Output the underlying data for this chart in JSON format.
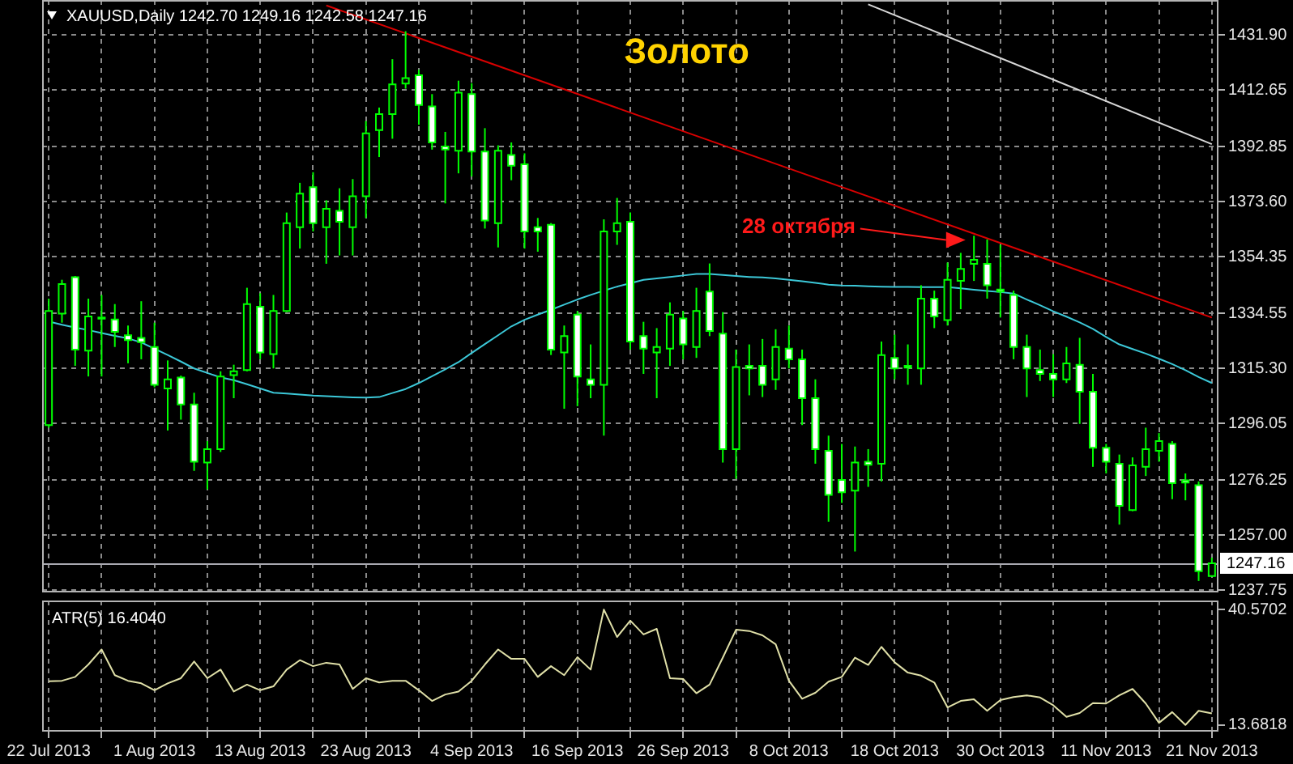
{
  "chart_data": [
    {
      "type": "candlestick",
      "title": "Золото",
      "subtitle": "XAUUSD,Daily 1242.70 1249.16 1242.58 1247.16",
      "categories": [
        null,
        null,
        null,
        null,
        null,
        null,
        null,
        null,
        null,
        null,
        null,
        null,
        null,
        null,
        null,
        null,
        null,
        null,
        null,
        null,
        null,
        null,
        null,
        null,
        null,
        null,
        null,
        null,
        null,
        null,
        null,
        null,
        null,
        null,
        null,
        null,
        null,
        null,
        null,
        null,
        null,
        null,
        null,
        null,
        null,
        null,
        null,
        null,
        null,
        null,
        null,
        null,
        null,
        null,
        null,
        null,
        null,
        null,
        null,
        null,
        null,
        null,
        null,
        null,
        null,
        null,
        null,
        null,
        null,
        null,
        null,
        null,
        null,
        null,
        null,
        null,
        null,
        null,
        null,
        null,
        null,
        null,
        null,
        null,
        null,
        null,
        null,
        null,
        null
      ],
      "ohlc": [
        [
          1295.5,
          1339.7,
          1294.6,
          1335.4
        ],
        [
          1334.5,
          1346.3,
          1331.3,
          1344.8
        ],
        [
          1347.2,
          1347.6,
          1316.2,
          1321.9
        ],
        [
          1321.5,
          1339.7,
          1312.5,
          1333.5
        ],
        [
          1332.7,
          1341.0,
          1312.5,
          1333.1
        ],
        [
          1332.4,
          1337.8,
          1322.8,
          1328.1
        ],
        [
          1326.9,
          1330.3,
          1317.1,
          1325.2
        ],
        [
          1326.0,
          1338.8,
          1318.5,
          1324.5
        ],
        [
          1322.8,
          1331.3,
          1308.7,
          1309.6
        ],
        [
          1308.3,
          1318.1,
          1293.6,
          1311.5
        ],
        [
          1312.1,
          1312.8,
          1297.4,
          1302.7
        ],
        [
          1302.7,
          1306.8,
          1279.5,
          1282.7
        ],
        [
          1282.4,
          1289.9,
          1273.0,
          1287.1
        ],
        [
          1287.1,
          1314.3,
          1286.1,
          1312.5
        ],
        [
          1313.0,
          1316.6,
          1304.9,
          1314.3
        ],
        [
          1314.7,
          1343.5,
          1314.3,
          1337.8
        ],
        [
          1336.9,
          1341.6,
          1318.5,
          1320.9
        ],
        [
          1320.3,
          1341.0,
          1315.3,
          1335.4
        ],
        [
          1335.4,
          1369.8,
          1335.0,
          1366.1
        ],
        [
          1364.7,
          1380.2,
          1357.2,
          1376.4
        ],
        [
          1378.7,
          1383.9,
          1363.2,
          1366.1
        ],
        [
          1364.7,
          1374.1,
          1351.9,
          1371.1
        ],
        [
          1370.4,
          1378.3,
          1354.8,
          1366.6
        ],
        [
          1364.7,
          1381.5,
          1354.8,
          1375.5
        ],
        [
          1375.5,
          1401.8,
          1367.9,
          1397.5
        ],
        [
          1398.6,
          1406.5,
          1389.2,
          1404.2
        ],
        [
          1404.2,
          1423.4,
          1395.6,
          1414.6
        ],
        [
          1414.9,
          1433.2,
          1413.1,
          1416.8
        ],
        [
          1417.8,
          1419.7,
          1400.5,
          1407.4
        ],
        [
          1406.9,
          1411.2,
          1391.8,
          1394.3
        ],
        [
          1392.9,
          1398.0,
          1373.0,
          1391.8
        ],
        [
          1391.4,
          1415.9,
          1383.5,
          1411.7
        ],
        [
          1411.2,
          1415.0,
          1382.4,
          1391.1
        ],
        [
          1391.1,
          1399.3,
          1364.2,
          1367.0
        ],
        [
          1366.1,
          1393.3,
          1357.6,
          1391.4
        ],
        [
          1389.9,
          1394.3,
          1381.1,
          1386.2
        ],
        [
          1386.7,
          1390.5,
          1357.2,
          1363.2
        ],
        [
          1364.7,
          1367.9,
          1356.1,
          1363.2
        ],
        [
          1365.5,
          1366.1,
          1320.0,
          1321.9
        ],
        [
          1320.9,
          1330.3,
          1301.2,
          1326.6
        ],
        [
          1334.1,
          1335.4,
          1302.1,
          1312.5
        ],
        [
          1311.5,
          1323.7,
          1304.9,
          1309.6
        ],
        [
          1309.6,
          1367.4,
          1291.8,
          1363.2
        ],
        [
          1363.2,
          1374.9,
          1358.5,
          1366.1
        ],
        [
          1366.6,
          1369.8,
          1321.9,
          1324.7
        ],
        [
          1326.6,
          1331.6,
          1313.4,
          1322.2
        ],
        [
          1320.9,
          1329.4,
          1304.9,
          1322.8
        ],
        [
          1322.2,
          1338.4,
          1316.2,
          1334.1
        ],
        [
          1332.8,
          1335.4,
          1318.5,
          1323.7
        ],
        [
          1322.8,
          1343.5,
          1319.0,
          1335.4
        ],
        [
          1342.2,
          1352.0,
          1326.6,
          1328.4
        ],
        [
          1327.5,
          1335.0,
          1282.4,
          1287.1
        ],
        [
          1287.1,
          1321.9,
          1276.7,
          1315.8
        ],
        [
          1316.2,
          1323.7,
          1305.9,
          1315.3
        ],
        [
          1316.2,
          1325.6,
          1305.3,
          1309.6
        ],
        [
          1311.5,
          1329.0,
          1307.8,
          1322.8
        ],
        [
          1322.2,
          1330.3,
          1315.3,
          1318.5
        ],
        [
          1318.5,
          1321.9,
          1295.5,
          1304.9
        ],
        [
          1304.9,
          1311.5,
          1282.0,
          1287.1
        ],
        [
          1286.5,
          1291.8,
          1261.7,
          1271.1
        ],
        [
          1276.3,
          1288.9,
          1268.3,
          1272.0
        ],
        [
          1272.6,
          1288.0,
          1251.3,
          1282.4
        ],
        [
          1282.7,
          1287.1,
          1273.9,
          1281.6
        ],
        [
          1282.0,
          1324.7,
          1275.8,
          1320.0
        ],
        [
          1319.0,
          1327.1,
          1311.5,
          1315.3
        ],
        [
          1316.2,
          1323.7,
          1309.6,
          1315.6
        ],
        [
          1315.3,
          1344.4,
          1309.6,
          1339.7
        ],
        [
          1339.7,
          1342.5,
          1329.4,
          1333.5
        ],
        [
          1332.2,
          1352.3,
          1330.3,
          1346.3
        ],
        [
          1345.9,
          1355.7,
          1336.0,
          1350.1
        ],
        [
          1351.9,
          1361.7,
          1345.9,
          1353.3
        ],
        [
          1351.9,
          1360.4,
          1339.7,
          1344.4
        ],
        [
          1342.9,
          1358.5,
          1333.1,
          1342.2
        ],
        [
          1341.0,
          1342.5,
          1318.5,
          1322.8
        ],
        [
          1322.8,
          1327.1,
          1305.3,
          1315.3
        ],
        [
          1314.7,
          1321.9,
          1310.9,
          1313.4
        ],
        [
          1313.4,
          1320.3,
          1305.3,
          1311.5
        ],
        [
          1311.5,
          1322.8,
          1310.2,
          1317.1
        ],
        [
          1316.6,
          1326.0,
          1295.9,
          1307.2
        ],
        [
          1307.2,
          1313.4,
          1280.9,
          1287.6
        ],
        [
          1287.6,
          1288.9,
          1278.6,
          1282.7
        ],
        [
          1282.0,
          1285.2,
          1260.7,
          1267.3
        ],
        [
          1265.8,
          1284.2,
          1265.4,
          1281.4
        ],
        [
          1280.9,
          1294.6,
          1277.7,
          1287.1
        ],
        [
          1286.5,
          1292.7,
          1282.7,
          1289.9
        ],
        [
          1288.9,
          1289.9,
          1269.6,
          1275.2
        ],
        [
          1276.2,
          1278.6,
          1269.2,
          1275.4
        ],
        [
          1274.5,
          1275.8,
          1241.0,
          1244.4
        ],
        [
          1242.7,
          1249.16,
          1242.58,
          1247.16
        ]
      ],
      "color": "#00ff00",
      "series": [
        {
          "type": "line",
          "color": "#3cc8d8",
          "values": [
            1331.7,
            1330.6,
            1329.6,
            1328.7,
            1327.7,
            1326.7,
            1325.8,
            1324.4,
            1322.2,
            1320.0,
            1317.7,
            1315.3,
            1313.7,
            1312.2,
            1311.2,
            1309.8,
            1308.3,
            1306.8,
            1306.5,
            1306.2,
            1305.8,
            1305.6,
            1305.4,
            1305.2,
            1305.1,
            1305.3,
            1306.7,
            1308.1,
            1310.2,
            1312.6,
            1315.0,
            1317.5,
            1320.7,
            1323.8,
            1326.9,
            1330.0,
            1332.3,
            1334.1,
            1335.8,
            1337.6,
            1339.4,
            1341.0,
            1342.5,
            1343.9,
            1345.1,
            1346.3,
            1346.8,
            1347.3,
            1347.8,
            1348.3,
            1348.3,
            1348.0,
            1347.6,
            1347.3,
            1347.1,
            1346.8,
            1346.3,
            1345.8,
            1345.2,
            1344.6,
            1344.3,
            1344.2,
            1344.0,
            1343.9,
            1343.8,
            1343.8,
            1343.7,
            1343.7,
            1343.7,
            1343.3,
            1342.8,
            1342.4,
            1342.0,
            1341.5,
            1339.4,
            1337.4,
            1335.3,
            1333.4,
            1331.4,
            1329.1,
            1326.3,
            1323.7,
            1322.1,
            1320.5,
            1318.7,
            1316.8,
            1314.7,
            1312.3,
            1310.2
          ]
        },
        {
          "type": "line",
          "color": "#d80000",
          "values": [
            null,
            null,
            null,
            null,
            null,
            null,
            null,
            null,
            null,
            null,
            null,
            null,
            null,
            null,
            null,
            null,
            null,
            null,
            null,
            null,
            null,
            1442.2,
            null,
            null,
            null,
            null,
            null,
            null,
            null,
            null,
            null,
            null,
            null,
            null,
            null,
            null,
            null,
            null,
            null,
            null,
            null,
            null,
            null,
            null,
            null,
            null,
            null,
            null,
            null,
            null,
            null,
            null,
            null,
            null,
            null,
            null,
            null,
            null,
            null,
            null,
            null,
            null,
            null,
            null,
            null,
            null,
            null,
            null,
            null,
            null,
            null,
            null,
            null,
            null,
            null,
            null,
            null,
            null,
            null,
            null,
            null,
            null,
            null,
            null,
            null,
            null,
            null,
            null,
            1333.1
          ]
        },
        {
          "type": "line",
          "color": "#d8d8d8",
          "values": [
            null,
            null,
            null,
            null,
            null,
            null,
            null,
            null,
            null,
            null,
            null,
            null,
            null,
            null,
            null,
            null,
            null,
            null,
            null,
            null,
            null,
            null,
            null,
            null,
            null,
            null,
            null,
            null,
            null,
            null,
            null,
            null,
            null,
            null,
            null,
            null,
            null,
            null,
            null,
            null,
            null,
            null,
            null,
            null,
            null,
            null,
            null,
            null,
            null,
            null,
            null,
            null,
            null,
            null,
            null,
            null,
            null,
            null,
            null,
            null,
            null,
            null,
            1442.6,
            null,
            null,
            null,
            null,
            null,
            null,
            null,
            null,
            null,
            null,
            null,
            null,
            null,
            null,
            null,
            null,
            null,
            null,
            null,
            null,
            null,
            null,
            null,
            null,
            null,
            1393.7
          ]
        }
      ],
      "ylim": [
        1237.0,
        1444.1
      ],
      "yticks": [
        {
          "value": 1431.9,
          "label": "1431.90"
        },
        1412.65,
        1392.85,
        {
          "value": 1373.6,
          "label": "1373.60"
        },
        1354.35,
        1334.55,
        {
          "value": 1315.3,
          "label": "1315.30"
        },
        1296.05,
        1276.25,
        {
          "value": 1257.0,
          "label": "1257.00"
        },
        1237.75
      ],
      "ref_lines": [
        {
          "axis": "y",
          "value": 1247.16,
          "label": "1247.16",
          "color": "#a8a8b0"
        }
      ],
      "annotations": [
        "28 октября"
      ],
      "grid": true,
      "tick_labels": "y"
    },
    {
      "type": "line",
      "title": "ATR(5) 16.4040",
      "categories": [
        "22 Jul 2013",
        null,
        null,
        null,
        null,
        null,
        null,
        null,
        "1 Aug 2013",
        null,
        null,
        null,
        null,
        null,
        null,
        null,
        "13 Aug 2013",
        null,
        null,
        null,
        null,
        null,
        null,
        null,
        "23 Aug 2013",
        null,
        null,
        null,
        null,
        null,
        null,
        null,
        "4 Sep 2013",
        null,
        null,
        null,
        null,
        null,
        null,
        null,
        "16 Sep 2013",
        null,
        null,
        null,
        null,
        null,
        null,
        null,
        "26 Sep 2013",
        null,
        null,
        null,
        null,
        null,
        null,
        null,
        "8 Oct 2013",
        null,
        null,
        null,
        null,
        null,
        null,
        null,
        "18 Oct 2013",
        null,
        null,
        null,
        null,
        null,
        null,
        null,
        "30 Oct 2013",
        null,
        null,
        null,
        null,
        null,
        null,
        null,
        "11 Nov 2013",
        null,
        null,
        null,
        null,
        null,
        null,
        null,
        "21 Nov 2013"
      ],
      "series": [
        {
          "color": "#e0e0a8",
          "values": [
            23.9,
            24.0,
            24.9,
            27.8,
            31.3,
            25.3,
            24.0,
            23.4,
            21.8,
            23.4,
            24.6,
            28.5,
            24.6,
            26.6,
            21.5,
            23.1,
            21.8,
            22.7,
            26.6,
            28.8,
            27.4,
            28.2,
            27.8,
            22.1,
            24.6,
            23.6,
            24.0,
            24.0,
            21.8,
            19.3,
            20.8,
            21.5,
            24.0,
            27.8,
            31.3,
            29.1,
            29.1,
            24.9,
            27.4,
            25.3,
            29.5,
            26.6,
            40.6,
            34.2,
            38.0,
            34.8,
            36.1,
            24.6,
            24.4,
            21.1,
            23.1,
            29.4,
            35.9,
            35.6,
            34.6,
            32.5,
            24.0,
            19.8,
            21.2,
            23.8,
            24.9,
            29.4,
            27.7,
            31.9,
            28.3,
            25.9,
            25.2,
            23.6,
            17.8,
            19.3,
            19.7,
            17.0,
            19.5,
            20.2,
            20.6,
            20.1,
            18.3,
            15.6,
            16.5,
            18.8,
            18.7,
            20.6,
            22.1,
            18.7,
            14.2,
            16.7,
            13.7,
            17.0,
            16.4
          ]
        }
      ],
      "ylim": [
        12.15,
        42.7
      ],
      "yticks": [
        40.5702,
        13.6818
      ],
      "grid": "x"
    }
  ]
}
